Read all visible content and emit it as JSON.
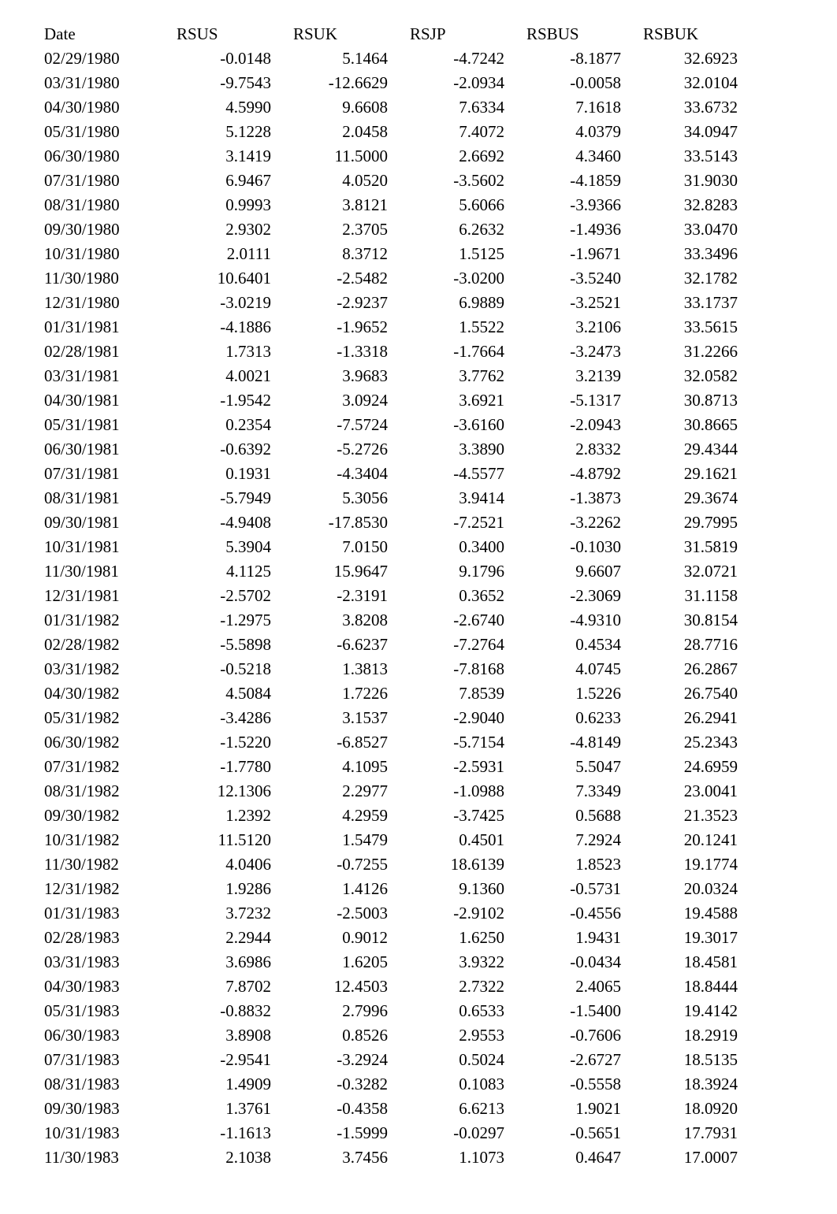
{
  "columns": [
    "Date",
    "RSUS",
    "RSUK",
    "RSJP",
    "RSBUS",
    "RSBUK"
  ],
  "rows": [
    [
      "02/29/1980",
      "-0.0148",
      "5.1464",
      "-4.7242",
      "-8.1877",
      "32.6923"
    ],
    [
      "03/31/1980",
      "-9.7543",
      "-12.6629",
      "-2.0934",
      "-0.0058",
      "32.0104"
    ],
    [
      "04/30/1980",
      "4.5990",
      "9.6608",
      "7.6334",
      "7.1618",
      "33.6732"
    ],
    [
      "05/31/1980",
      "5.1228",
      "2.0458",
      "7.4072",
      "4.0379",
      "34.0947"
    ],
    [
      "06/30/1980",
      "3.1419",
      "11.5000",
      "2.6692",
      "4.3460",
      "33.5143"
    ],
    [
      "07/31/1980",
      "6.9467",
      "4.0520",
      "-3.5602",
      "-4.1859",
      "31.9030"
    ],
    [
      "08/31/1980",
      "0.9993",
      "3.8121",
      "5.6066",
      "-3.9366",
      "32.8283"
    ],
    [
      "09/30/1980",
      "2.9302",
      "2.3705",
      "6.2632",
      "-1.4936",
      "33.0470"
    ],
    [
      "10/31/1980",
      "2.0111",
      "8.3712",
      "1.5125",
      "-1.9671",
      "33.3496"
    ],
    [
      "11/30/1980",
      "10.6401",
      "-2.5482",
      "-3.0200",
      "-3.5240",
      "32.1782"
    ],
    [
      "12/31/1980",
      "-3.0219",
      "-2.9237",
      "6.9889",
      "-3.2521",
      "33.1737"
    ],
    [
      "01/31/1981",
      "-4.1886",
      "-1.9652",
      "1.5522",
      "3.2106",
      "33.5615"
    ],
    [
      "02/28/1981",
      "1.7313",
      "-1.3318",
      "-1.7664",
      "-3.2473",
      "31.2266"
    ],
    [
      "03/31/1981",
      "4.0021",
      "3.9683",
      "3.7762",
      "3.2139",
      "32.0582"
    ],
    [
      "04/30/1981",
      "-1.9542",
      "3.0924",
      "3.6921",
      "-5.1317",
      "30.8713"
    ],
    [
      "05/31/1981",
      "0.2354",
      "-7.5724",
      "-3.6160",
      "-2.0943",
      "30.8665"
    ],
    [
      "06/30/1981",
      "-0.6392",
      "-5.2726",
      "3.3890",
      "2.8332",
      "29.4344"
    ],
    [
      "07/31/1981",
      "0.1931",
      "-4.3404",
      "-4.5577",
      "-4.8792",
      "29.1621"
    ],
    [
      "08/31/1981",
      "-5.7949",
      "5.3056",
      "3.9414",
      "-1.3873",
      "29.3674"
    ],
    [
      "09/30/1981",
      "-4.9408",
      "-17.8530",
      "-7.2521",
      "-3.2262",
      "29.7995"
    ],
    [
      "10/31/1981",
      "5.3904",
      "7.0150",
      "0.3400",
      "-0.1030",
      "31.5819"
    ],
    [
      "11/30/1981",
      "4.1125",
      "15.9647",
      "9.1796",
      "9.6607",
      "32.0721"
    ],
    [
      "12/31/1981",
      "-2.5702",
      "-2.3191",
      "0.3652",
      "-2.3069",
      "31.1158"
    ],
    [
      "01/31/1982",
      "-1.2975",
      "3.8208",
      "-2.6740",
      "-4.9310",
      "30.8154"
    ],
    [
      "02/28/1982",
      "-5.5898",
      "-6.6237",
      "-7.2764",
      "0.4534",
      "28.7716"
    ],
    [
      "03/31/1982",
      "-0.5218",
      "1.3813",
      "-7.8168",
      "4.0745",
      "26.2867"
    ],
    [
      "04/30/1982",
      "4.5084",
      "1.7226",
      "7.8539",
      "1.5226",
      "26.7540"
    ],
    [
      "05/31/1982",
      "-3.4286",
      "3.1537",
      "-2.9040",
      "0.6233",
      "26.2941"
    ],
    [
      "06/30/1982",
      "-1.5220",
      "-6.8527",
      "-5.7154",
      "-4.8149",
      "25.2343"
    ],
    [
      "07/31/1982",
      "-1.7780",
      "4.1095",
      "-2.5931",
      "5.5047",
      "24.6959"
    ],
    [
      "08/31/1982",
      "12.1306",
      "2.2977",
      "-1.0988",
      "7.3349",
      "23.0041"
    ],
    [
      "09/30/1982",
      "1.2392",
      "4.2959",
      "-3.7425",
      "0.5688",
      "21.3523"
    ],
    [
      "10/31/1982",
      "11.5120",
      "1.5479",
      "0.4501",
      "7.2924",
      "20.1241"
    ],
    [
      "11/30/1982",
      "4.0406",
      "-0.7255",
      "18.6139",
      "1.8523",
      "19.1774"
    ],
    [
      "12/31/1982",
      "1.9286",
      "1.4126",
      "9.1360",
      "-0.5731",
      "20.0324"
    ],
    [
      "01/31/1983",
      "3.7232",
      "-2.5003",
      "-2.9102",
      "-0.4556",
      "19.4588"
    ],
    [
      "02/28/1983",
      "2.2944",
      "0.9012",
      "1.6250",
      "1.9431",
      "19.3017"
    ],
    [
      "03/31/1983",
      "3.6986",
      "1.6205",
      "3.9322",
      "-0.0434",
      "18.4581"
    ],
    [
      "04/30/1983",
      "7.8702",
      "12.4503",
      "2.7322",
      "2.4065",
      "18.8444"
    ],
    [
      "05/31/1983",
      "-0.8832",
      "2.7996",
      "0.6533",
      "-1.5400",
      "19.4142"
    ],
    [
      "06/30/1983",
      "3.8908",
      "0.8526",
      "2.9553",
      "-0.7606",
      "18.2919"
    ],
    [
      "07/31/1983",
      "-2.9541",
      "-3.2924",
      "0.5024",
      "-2.6727",
      "18.5135"
    ],
    [
      "08/31/1983",
      "1.4909",
      "-0.3282",
      "0.1083",
      "-0.5558",
      "18.3924"
    ],
    [
      "09/30/1983",
      "1.3761",
      "-0.4358",
      "6.6213",
      "1.9021",
      "18.0920"
    ],
    [
      "10/31/1983",
      "-1.1613",
      "-1.5999",
      "-0.0297",
      "-0.5651",
      "17.7931"
    ],
    [
      "11/30/1983",
      "2.1038",
      "3.7456",
      "1.1073",
      "0.4647",
      "17.0007"
    ]
  ]
}
